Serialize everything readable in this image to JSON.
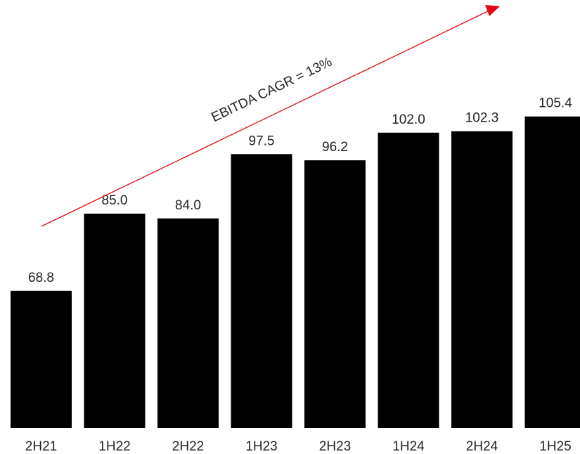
{
  "chart_data": {
    "type": "bar",
    "categories": [
      "2H21",
      "1H22",
      "2H22",
      "1H23",
      "2H23",
      "1H24",
      "2H24",
      "1H25"
    ],
    "values": [
      68.8,
      85.0,
      84.0,
      97.5,
      96.2,
      102.0,
      102.3,
      105.4
    ],
    "value_labels": [
      "68.8",
      "85.0",
      "84.0",
      "97.5",
      "96.2",
      "102.0",
      "102.3",
      "105.4"
    ],
    "title": "",
    "xlabel": "",
    "ylabel": "",
    "ylim": [
      40,
      112
    ],
    "grid": false,
    "legend": "none",
    "annotations": [
      {
        "text": "EBITDA CAGR = 13%",
        "kind": "trend-arrow",
        "color": "#e30613"
      }
    ],
    "colors": {
      "bar": "#000000",
      "trend_arrow": "#e30613",
      "text": "#222222"
    }
  }
}
